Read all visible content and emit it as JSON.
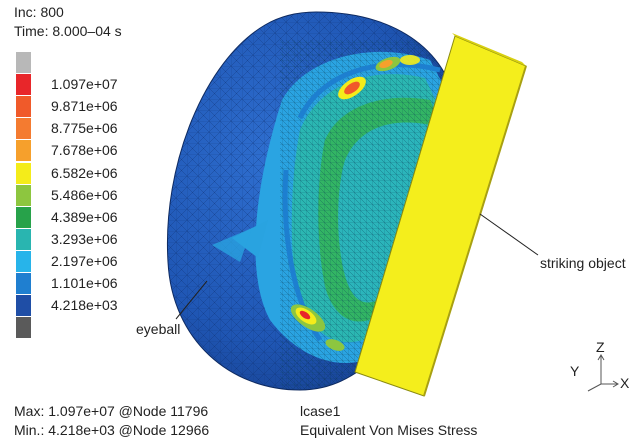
{
  "header": {
    "increment": "Inc: 800",
    "time": "Time: 8.000–04 s"
  },
  "legend": {
    "items": [
      {
        "color": "#b8b8b8",
        "label": ""
      },
      {
        "color": "#e8262a",
        "label": "1.097e+07"
      },
      {
        "color": "#f05a2a",
        "label": "9.871e+06"
      },
      {
        "color": "#f47b30",
        "label": "8.775e+06"
      },
      {
        "color": "#f6a02c",
        "label": "7.678e+06"
      },
      {
        "color": "#f4ec1a",
        "label": "6.582e+06"
      },
      {
        "color": "#8dc63f",
        "label": "5.486e+06"
      },
      {
        "color": "#27a24a",
        "label": "4.389e+06"
      },
      {
        "color": "#29b5b0",
        "label": "3.293e+06"
      },
      {
        "color": "#27b4ea",
        "label": "2.197e+06"
      },
      {
        "color": "#1f7fd0",
        "label": "1.101e+06"
      },
      {
        "color": "#1f4ea6",
        "label": "4.218e+03"
      },
      {
        "color": "#5a5a5a",
        "label": ""
      }
    ]
  },
  "footer": {
    "max": "Max: 1.097e+07 @Node 11796",
    "min": "Min.: 4.218e+03 @Node 12966",
    "lcase": "lcase1",
    "quantity": "Equivalent Von Mises Stress"
  },
  "annotations": {
    "eyeball": "eyeball",
    "striking_object": "striking object"
  },
  "axes": {
    "z": "Z",
    "y": "Y",
    "x": "X"
  }
}
